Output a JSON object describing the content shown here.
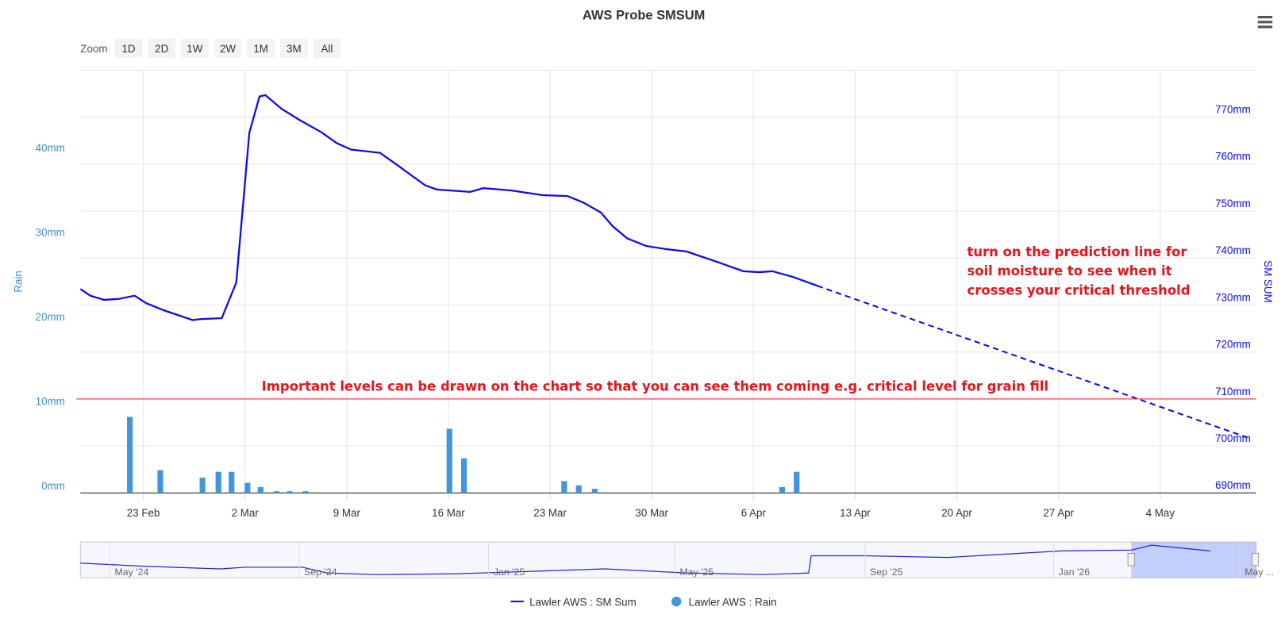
{
  "chart_data": {
    "type": "line",
    "title": "AWS Probe SMSUM",
    "range_selector": {
      "label": "Zoom",
      "buttons": [
        "1D",
        "2D",
        "1W",
        "2W",
        "1M",
        "3M",
        "All"
      ]
    },
    "y_axis_title": "Rain",
    "y2_axis_title": "SM SUM",
    "xlim": [
      49.67,
      130.6
    ],
    "xticks": [
      {
        "value": 54,
        "label": "23 Feb"
      },
      {
        "value": 61,
        "label": "2 Mar"
      },
      {
        "value": 68,
        "label": "9 Mar"
      },
      {
        "value": 75,
        "label": "16 Mar"
      },
      {
        "value": 82,
        "label": "23 Mar"
      },
      {
        "value": 89,
        "label": "30 Mar"
      },
      {
        "value": 96,
        "label": "6 Apr"
      },
      {
        "value": 103,
        "label": "13 Apr"
      },
      {
        "value": 110,
        "label": "20 Apr"
      },
      {
        "value": 117,
        "label": "27 Apr"
      },
      {
        "value": 124,
        "label": "4 May"
      }
    ],
    "ylim": [
      0,
      50
    ],
    "yticks": [
      {
        "value": 0,
        "label": "0mm"
      },
      {
        "value": 10,
        "label": "10mm"
      },
      {
        "value": 20,
        "label": "20mm"
      },
      {
        "value": 30,
        "label": "30mm"
      },
      {
        "value": 40,
        "label": "40mm"
      }
    ],
    "y2lim": [
      690,
      780
    ],
    "y2ticks": [
      {
        "value": 690,
        "label": "690mm"
      },
      {
        "value": 700,
        "label": "700mm"
      },
      {
        "value": 710,
        "label": "710mm"
      },
      {
        "value": 720,
        "label": "720mm"
      },
      {
        "value": 730,
        "label": "730mm"
      },
      {
        "value": 740,
        "label": "740mm"
      },
      {
        "value": 750,
        "label": "750mm"
      },
      {
        "value": 760,
        "label": "760mm"
      },
      {
        "value": 770,
        "label": "770mm"
      }
    ],
    "grid": true,
    "series": [
      {
        "name": "Lawler AWS : SM Sum",
        "type": "line",
        "color": "#0a0af0",
        "axis": "y2",
        "x": [
          49.67,
          50.35,
          51.3,
          52.3,
          53.4,
          54.2,
          55.4,
          57.4,
          57.9,
          59.4,
          60.4,
          61.3,
          62.0,
          62.4,
          63.5,
          64.7,
          66.3,
          67.3,
          68.3,
          70.3,
          71.7,
          73.4,
          74.2,
          76.5,
          77.4,
          79.3,
          81.5,
          83.2,
          84.3,
          85.5,
          86.3,
          87.3,
          88.6,
          90.0,
          91.4,
          93.4,
          95.3,
          96.4,
          97.3,
          98.7,
          100.4
        ],
        "values": [
          733.4,
          732.0,
          731.1,
          731.3,
          732.0,
          730.4,
          728.9,
          726.8,
          727.0,
          727.2,
          734.8,
          766.7,
          774.4,
          774.7,
          771.8,
          769.5,
          766.7,
          764.5,
          763.1,
          762.4,
          759.3,
          755.5,
          754.6,
          754.1,
          754.9,
          754.4,
          753.4,
          753.2,
          751.8,
          749.7,
          746.8,
          744.2,
          742.6,
          741.9,
          741.4,
          739.3,
          737.2,
          737.0,
          737.2,
          736.0,
          734.1
        ]
      },
      {
        "type": "line",
        "color": "#0a0af0",
        "axis": "y2",
        "dashed": true,
        "x": [
          100.4,
          130.0
        ],
        "values": [
          734.1,
          701.8
        ]
      },
      {
        "name": "Lawler AWS : Rain",
        "type": "bar",
        "color": "#4196dc",
        "axis": "y",
        "x": [
          53.1,
          55.2,
          58.1,
          59.2,
          60.1,
          61.2,
          62.1,
          63.2,
          64.1,
          65.2,
          75.1,
          76.1,
          83.0,
          84.0,
          85.1,
          98.0,
          99.0
        ],
        "values": [
          9.0,
          2.7,
          1.8,
          2.5,
          2.5,
          1.2,
          0.7,
          0.2,
          0.2,
          0.2,
          7.6,
          4.1,
          1.4,
          0.9,
          0.5,
          0.7,
          2.5
        ]
      }
    ],
    "threshold": {
      "value": 710,
      "axis": "y2",
      "color": "#e8141b"
    },
    "annotations": [
      {
        "lines": [
          "Important levels can be drawn on the chart so that you can see them coming e.g. critical level for grain fill"
        ],
        "color": "#e8141b"
      },
      {
        "lines": [
          "turn on the prediction line for",
          "soil moisture to see when it",
          "crosses your critical threshold"
        ],
        "color": "#e8141b"
      }
    ],
    "navigator": {
      "labels": [
        "May '24",
        "Sep '24",
        "Jan '25",
        "May '25",
        "Sep '25",
        "Jan '26",
        "May ..."
      ]
    }
  }
}
